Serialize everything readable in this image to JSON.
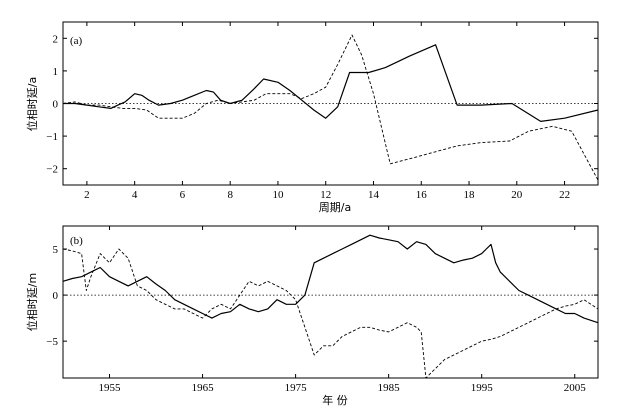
{
  "chart_data": [
    {
      "type": "line",
      "panel_label": "(a)",
      "xlabel": "周期/a",
      "ylabel": "位相时延/a",
      "xlim": [
        1,
        23.4
      ],
      "ylim": [
        -2.5,
        2.5
      ],
      "xticks": [
        2,
        4,
        6,
        8,
        10,
        12,
        14,
        16,
        18,
        20,
        22
      ],
      "xtick_labels": [
        "2",
        "4",
        "6",
        "8",
        "10",
        "12",
        "14",
        "16",
        "18",
        "20",
        "22"
      ],
      "yticks": [
        -2,
        -1,
        0,
        1,
        2
      ],
      "ytick_labels": [
        "−2",
        "−1",
        "0",
        "1",
        "2"
      ],
      "reference_line": 0,
      "series": [
        {
          "style": "solid",
          "x": [
            1,
            1.5,
            2,
            2.5,
            3,
            3.3,
            3.6,
            4,
            4.3,
            4.6,
            5,
            5.5,
            6,
            6.5,
            7,
            7.3,
            7.6,
            8,
            8.5,
            9,
            9.4,
            10,
            10.5,
            11,
            11.5,
            12,
            12.5,
            13,
            13.8,
            14.5,
            15.5,
            16.6,
            17.5,
            18.5,
            19.8,
            21,
            22,
            23.4
          ],
          "y": [
            0,
            0,
            -0.05,
            -0.1,
            -0.15,
            -0.05,
            0.05,
            0.3,
            0.25,
            0.1,
            -0.05,
            0,
            0.1,
            0.25,
            0.4,
            0.35,
            0.1,
            0,
            0.1,
            0.45,
            0.75,
            0.65,
            0.4,
            0.1,
            -0.2,
            -0.45,
            -0.1,
            0.95,
            0.95,
            1.1,
            1.45,
            1.8,
            -0.05,
            -0.05,
            0,
            -0.55,
            -0.45,
            -0.2
          ]
        },
        {
          "style": "dashed",
          "x": [
            1,
            1.5,
            2,
            2.5,
            3,
            3.5,
            4,
            4.5,
            5,
            5.5,
            6,
            6.5,
            7,
            7.5,
            8,
            8.5,
            9,
            9.5,
            10,
            10.5,
            11,
            11.5,
            12,
            12.5,
            13.1,
            13.5,
            14,
            14.7,
            15.5,
            16.5,
            17.5,
            18.5,
            19.7,
            20.5,
            21.5,
            22.3,
            23.4
          ],
          "y": [
            0,
            0.05,
            -0.05,
            -0.05,
            -0.1,
            -0.15,
            -0.15,
            -0.2,
            -0.45,
            -0.45,
            -0.45,
            -0.3,
            0,
            0.1,
            0,
            0.05,
            0.1,
            0.3,
            0.3,
            0.3,
            0.15,
            0.3,
            0.5,
            1.2,
            2.1,
            1.5,
            0.3,
            -1.85,
            -1.7,
            -1.5,
            -1.3,
            -1.2,
            -1.15,
            -0.85,
            -0.7,
            -0.85,
            -2.35
          ]
        }
      ]
    },
    {
      "type": "line",
      "panel_label": "(b)",
      "xlabel": "年  份",
      "ylabel": "位相时延/m",
      "xlim": [
        1950,
        2007.5
      ],
      "ylim": [
        -9,
        7.5
      ],
      "xticks": [
        1955,
        1965,
        1975,
        1985,
        1995,
        2005
      ],
      "xtick_labels": [
        "1955",
        "1965",
        "1975",
        "1985",
        "1995",
        "2005"
      ],
      "yticks": [
        -5,
        0,
        5
      ],
      "ytick_labels": [
        "−5",
        "0",
        "5"
      ],
      "reference_line": 0,
      "series": [
        {
          "style": "solid",
          "x": [
            1950,
            1951,
            1952,
            1953,
            1954,
            1955,
            1956,
            1957,
            1958,
            1959,
            1960,
            1961,
            1962,
            1963,
            1964,
            1965,
            1966,
            1967,
            1968,
            1969,
            1970,
            1971,
            1972,
            1973,
            1974,
            1975,
            1976,
            1977,
            1978,
            1979,
            1980,
            1981,
            1982,
            1983,
            1984,
            1985,
            1986,
            1987,
            1988,
            1989,
            1990,
            1991,
            1992,
            1993,
            1994,
            1995,
            1995.5,
            1996,
            1996.5,
            1997,
            1998,
            1999,
            2000,
            2001,
            2002,
            2003,
            2004,
            2005,
            2006,
            2007.5
          ],
          "y": [
            1.5,
            1.8,
            2.0,
            2.5,
            3.0,
            2.0,
            1.5,
            1.0,
            1.5,
            2.0,
            1.2,
            0.5,
            -0.5,
            -1.0,
            -1.5,
            -2.0,
            -2.5,
            -2.0,
            -1.8,
            -1.0,
            -1.5,
            -1.8,
            -1.5,
            -0.5,
            -1.0,
            -1.0,
            0,
            3.5,
            4.0,
            4.5,
            5.0,
            5.5,
            6.0,
            6.5,
            6.2,
            6.0,
            5.8,
            5.0,
            5.8,
            5.5,
            4.5,
            4.0,
            3.5,
            3.8,
            4.0,
            4.5,
            5.0,
            5.5,
            3.5,
            2.5,
            1.5,
            0.5,
            0,
            -0.5,
            -1.0,
            -1.5,
            -2.0,
            -2.0,
            -2.5,
            -3.0
          ]
        },
        {
          "style": "dashed",
          "x": [
            1950,
            1951,
            1952,
            1952.5,
            1953,
            1954,
            1955,
            1956,
            1957,
            1958,
            1959,
            1960,
            1961,
            1962,
            1963,
            1964,
            1965,
            1966,
            1967,
            1968,
            1969,
            1970,
            1971,
            1972,
            1973,
            1974,
            1975,
            1976,
            1977,
            1978,
            1979,
            1980,
            1981,
            1982,
            1983,
            1984,
            1985,
            1986,
            1987,
            1988,
            1988.5,
            1989,
            1990,
            1991,
            1992,
            1993,
            1994,
            1995,
            1996,
            1997,
            1998,
            1999,
            2000,
            2001,
            2002,
            2003,
            2004,
            2005,
            2006,
            2007.5
          ],
          "y": [
            5.0,
            4.8,
            4.5,
            0.5,
            2.0,
            4.5,
            3.5,
            5.0,
            4.0,
            1.0,
            0.5,
            -0.5,
            -1.0,
            -1.5,
            -1.5,
            -2.0,
            -2.5,
            -1.5,
            -1.0,
            -1.5,
            0,
            1.5,
            1.0,
            1.5,
            1.0,
            0.5,
            -0.5,
            -3.5,
            -6.5,
            -5.5,
            -5.5,
            -4.5,
            -4.0,
            -3.5,
            -3.5,
            -3.8,
            -4.0,
            -3.5,
            -3.0,
            -3.5,
            -4.0,
            -9.0,
            -8.0,
            -7.0,
            -6.5,
            -6.0,
            -5.5,
            -5.0,
            -4.8,
            -4.5,
            -4.0,
            -3.5,
            -3.0,
            -2.5,
            -2.0,
            -1.5,
            -1.2,
            -1.0,
            -0.5,
            -1.5
          ]
        }
      ]
    }
  ]
}
